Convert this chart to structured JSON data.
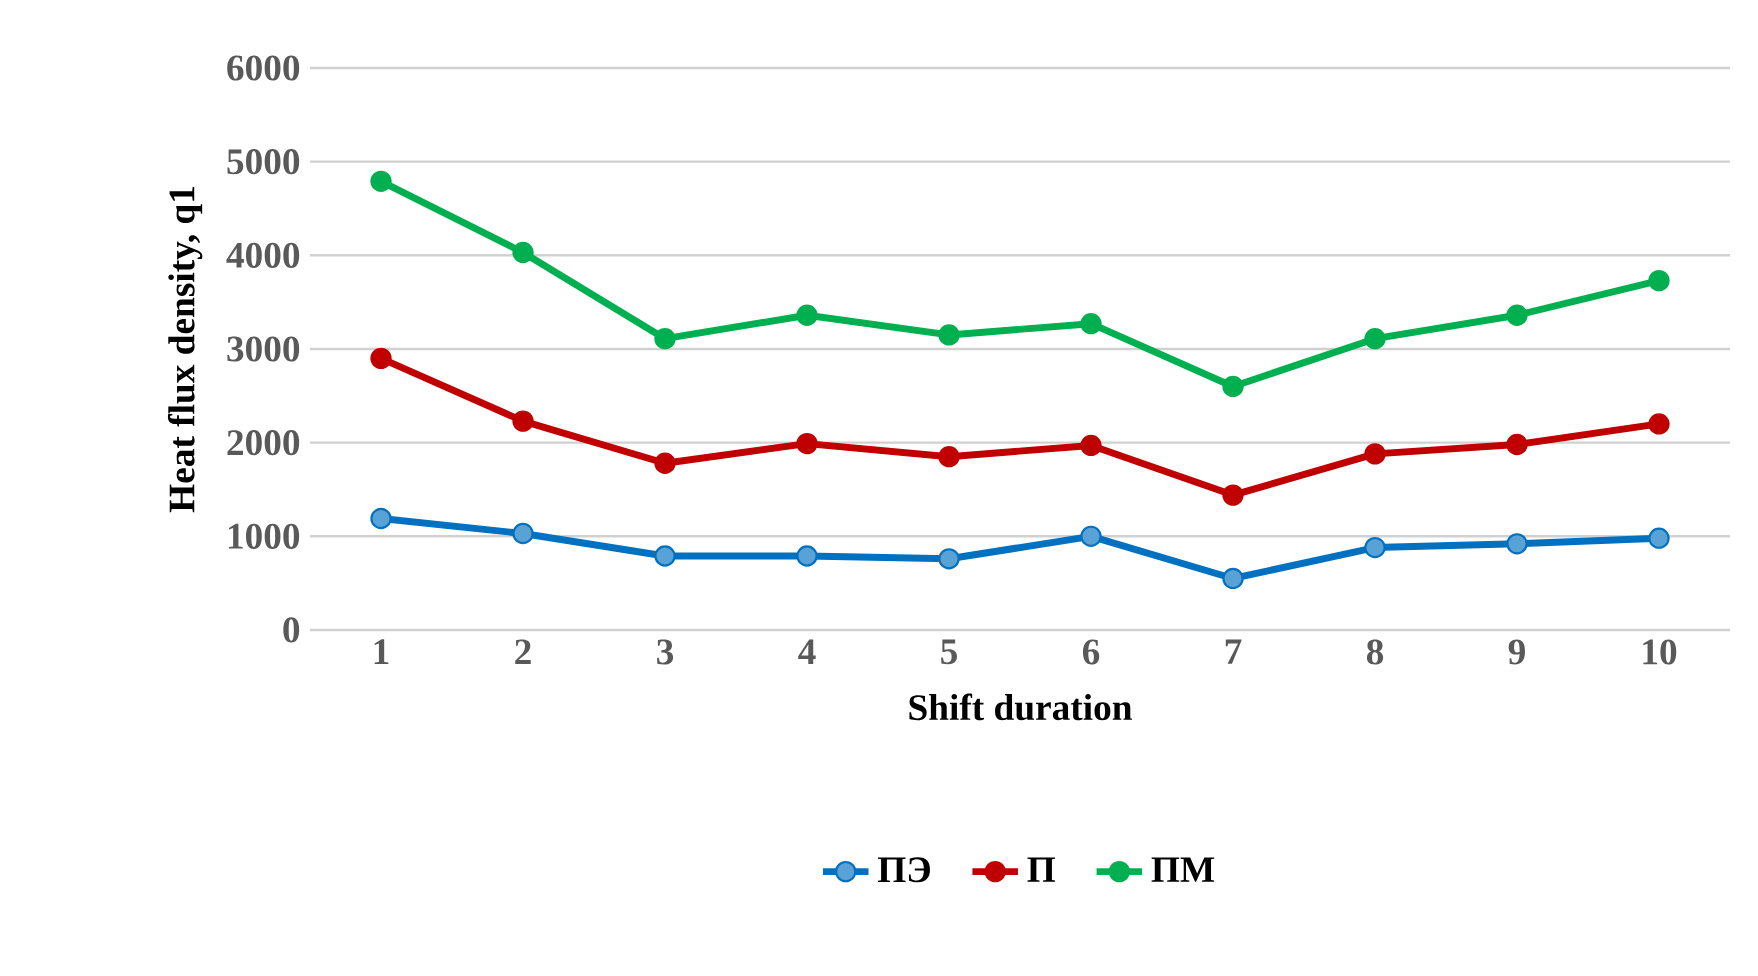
{
  "chart_data": {
    "type": "line",
    "xlabel": "Shift duration",
    "ylabel": "Heat flux density, q1",
    "categories": [
      "1",
      "2",
      "3",
      "4",
      "5",
      "6",
      "7",
      "8",
      "9",
      "10"
    ],
    "series": [
      {
        "name": "ПЭ",
        "color": "#0070c0",
        "values": [
          1190,
          1030,
          790,
          790,
          760,
          1000,
          550,
          880,
          920,
          980
        ]
      },
      {
        "name": "П",
        "color": "#c00000",
        "values": [
          2900,
          2230,
          1780,
          1990,
          1850,
          1970,
          1440,
          1880,
          1980,
          2200
        ]
      },
      {
        "name": "ПМ",
        "color": "#00b050",
        "values": [
          4790,
          4030,
          3110,
          3360,
          3150,
          3270,
          2600,
          3110,
          3360,
          3730
        ]
      }
    ],
    "ylim": [
      0,
      6000
    ],
    "yticks": [
      0,
      1000,
      2000,
      3000,
      4000,
      5000,
      6000
    ],
    "grid": "y",
    "legend": "bottom",
    "marker": "circle",
    "line_style": "solid"
  }
}
